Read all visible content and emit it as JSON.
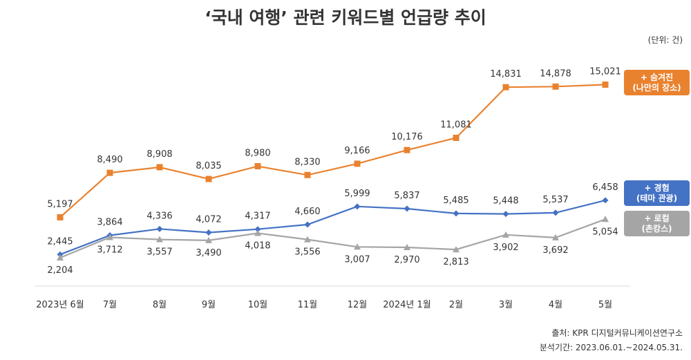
{
  "chart_data": {
    "type": "line",
    "title": "‘국내 여행’ 관련 키워드별 언급량 추이",
    "unit": "(단위: 건)",
    "categories": [
      "2023년 6월",
      "7월",
      "8월",
      "9월",
      "10월",
      "11월",
      "12월",
      "2024년 1월",
      "2월",
      "3월",
      "4월",
      "5월"
    ],
    "series": [
      {
        "name": "+ 숨겨진\n(나만의 장소)",
        "color": "#E9822F",
        "marker": "square",
        "values": [
          5197,
          8490,
          8908,
          8035,
          8980,
          8330,
          9166,
          10176,
          11081,
          14831,
          14878,
          15021
        ],
        "labels": [
          "5,197",
          "8,490",
          "8,908",
          "8,035",
          "8,980",
          "8,330",
          "9,166",
          "10,176",
          "11,081",
          "14,831",
          "14,878",
          "15,021"
        ]
      },
      {
        "name": "+ 경험\n(테마 관광)",
        "color": "#4472C4",
        "marker": "diamond",
        "values": [
          2445,
          3864,
          4336,
          4072,
          4317,
          4660,
          5999,
          5837,
          5485,
          5448,
          5537,
          6458
        ],
        "labels": [
          "2,445",
          "3,864",
          "4,336",
          "4,072",
          "4,317",
          "4,660",
          "5,999",
          "5,837",
          "5,485",
          "5,448",
          "5,537",
          "6,458"
        ]
      },
      {
        "name": "+ 로컬\n(촌캉스)",
        "color": "#A5A5A5",
        "marker": "triangle",
        "values": [
          2204,
          3712,
          3557,
          3490,
          4018,
          3556,
          3007,
          2970,
          2813,
          3902,
          3692,
          5054
        ],
        "labels": [
          "2,204",
          "3,712",
          "3,557",
          "3,490",
          "4,018",
          "3,556",
          "3,007",
          "2,970",
          "2,813",
          "3,902",
          "3,692",
          "5,054"
        ]
      }
    ],
    "legend_position": "right",
    "grid": false
  },
  "source": {
    "line1": "출처: KPR 디지털커뮤니케이션연구소",
    "line2": "분석기간: 2023.06.01.~2024.05.31."
  }
}
